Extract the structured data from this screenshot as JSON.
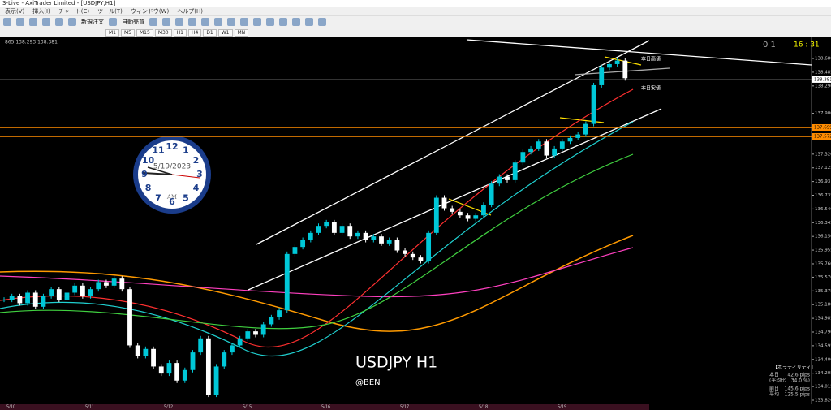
{
  "window": {
    "title": "3-Live - AxiTrader Limited - [USDJPY,H1]"
  },
  "menu": [
    "表示(V)",
    "挿入(I)",
    "チャート(C)",
    "ツール(T)",
    "ウィンドウ(W)",
    "ヘルプ(H)"
  ],
  "toolbar": [
    "新規注文",
    "自動売買"
  ],
  "timeframes": [
    "M1",
    "M5",
    "M15",
    "M30",
    "H1",
    "H4",
    "D1",
    "W1",
    "MN"
  ],
  "chart": {
    "type": "candlestick",
    "symbol_info": "865 138.293 138.381",
    "corner_right": "0 1",
    "time": "16 : 31",
    "overlay_title": "USDJPY H1",
    "overlay_author": "@BEN",
    "high_label": "本日高値",
    "low_label": "本日安値",
    "ylim": [
      133.774,
      138.969
    ],
    "yticks": [
      {
        "value": 138.68,
        "label": "138.680"
      },
      {
        "value": 138.485,
        "label": "138.485"
      },
      {
        "value": 138.29,
        "label": "138.290"
      },
      {
        "value": 137.9,
        "label": "137.900"
      },
      {
        "value": 137.32,
        "label": "137.320"
      },
      {
        "value": 137.125,
        "label": "137.125"
      },
      136.93,
      {
        "value": 136.735,
        "label": "136.735"
      },
      {
        "value": 136.54,
        "label": "136.540"
      },
      {
        "value": 136.345,
        "label": "136.345"
      },
      {
        "value": 136.15,
        "label": "136.150"
      },
      {
        "value": 135.955,
        "label": "135.955"
      },
      {
        "value": 135.76,
        "label": "135.760"
      },
      {
        "value": 135.57,
        "label": "135.570"
      },
      {
        "value": 135.375,
        "label": "135.375"
      },
      {
        "value": 135.18,
        "label": "135.180"
      },
      {
        "value": 134.985,
        "label": "134.985"
      },
      {
        "value": 134.79,
        "label": "134.790"
      },
      {
        "value": 134.595,
        "label": "134.595"
      },
      {
        "value": 134.4,
        "label": "134.400"
      },
      {
        "value": 134.205,
        "label": "134.205"
      },
      {
        "value": 134.015,
        "label": "134.015"
      },
      {
        "value": 133.82,
        "label": "133.820"
      }
    ],
    "price_lines": [
      {
        "value": 138.381,
        "label": "138.381",
        "color": "#888888"
      },
      {
        "value": 137.699,
        "label": "137.699",
        "color": "#ff8c00"
      },
      {
        "value": 137.572,
        "label": "137.572",
        "color": "#ff8c00"
      }
    ],
    "bull_color": "#00c8d8",
    "bear_color": "#ffffff",
    "closes": [
      135.25,
      135.3,
      135.2,
      135.35,
      135.15,
      135.3,
      135.4,
      135.25,
      135.35,
      135.45,
      135.3,
      135.4,
      135.5,
      135.45,
      135.55,
      135.4,
      134.6,
      134.45,
      134.55,
      134.3,
      134.2,
      134.35,
      134.1,
      134.25,
      134.5,
      134.7,
      133.9,
      134.3,
      134.5,
      134.6,
      134.7,
      134.8,
      134.75,
      134.9,
      135.0,
      135.1,
      135.9,
      136.0,
      136.1,
      136.2,
      136.3,
      136.35,
      136.2,
      136.3,
      136.15,
      136.2,
      136.1,
      136.15,
      136.05,
      136.1,
      135.95,
      135.9,
      135.85,
      135.8,
      136.2,
      136.7,
      136.55,
      136.5,
      136.45,
      136.4,
      136.45,
      136.6,
      136.9,
      137.0,
      136.95,
      137.2,
      137.35,
      137.4,
      137.5,
      137.3,
      137.4,
      137.5,
      137.55,
      137.6,
      137.75,
      138.3,
      138.55,
      138.6,
      138.65,
      138.4
    ],
    "dates": [
      "5/10",
      "5/11",
      "5/12",
      "5/15",
      "5/16",
      "5/17",
      "5/18",
      "5/19"
    ]
  },
  "clock": {
    "date": "5/19/2023",
    "period": "AM",
    "numerals": [
      "12",
      "1",
      "2",
      "3",
      "4",
      "5",
      "6",
      "7",
      "8",
      "9",
      "10",
      "11"
    ]
  },
  "volatility": {
    "heading": "【ボラティリティ】",
    "rows": [
      [
        "本日",
        "42.6 pips"
      ],
      [
        "(平均比",
        "34.0 %)"
      ],
      [
        "前日",
        "145.6 pips"
      ],
      [
        "平均",
        "125.5 pips"
      ]
    ]
  }
}
